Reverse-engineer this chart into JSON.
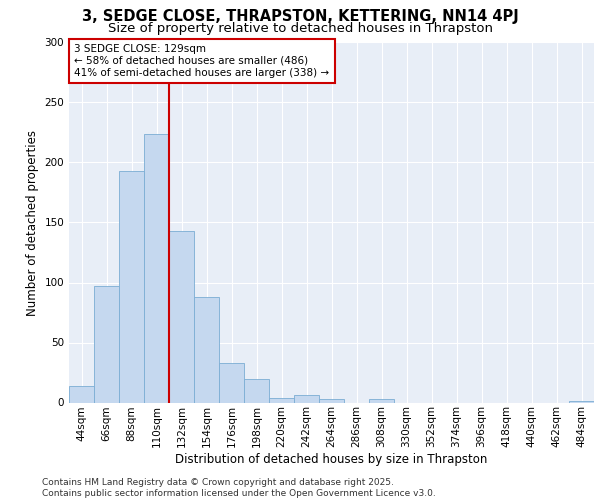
{
  "title1": "3, SEDGE CLOSE, THRAPSTON, KETTERING, NN14 4PJ",
  "title2": "Size of property relative to detached houses in Thrapston",
  "xlabel": "Distribution of detached houses by size in Thrapston",
  "ylabel": "Number of detached properties",
  "categories": [
    "44sqm",
    "66sqm",
    "88sqm",
    "110sqm",
    "132sqm",
    "154sqm",
    "176sqm",
    "198sqm",
    "220sqm",
    "242sqm",
    "264sqm",
    "286sqm",
    "308sqm",
    "330sqm",
    "352sqm",
    "374sqm",
    "396sqm",
    "418sqm",
    "440sqm",
    "462sqm",
    "484sqm"
  ],
  "values": [
    14,
    97,
    193,
    224,
    143,
    88,
    33,
    20,
    4,
    6,
    3,
    0,
    3,
    0,
    0,
    0,
    0,
    0,
    0,
    0,
    1
  ],
  "bar_color": "#c5d8ef",
  "bar_edge_color": "#7badd4",
  "background_color": "#e8eef7",
  "grid_color": "#ffffff",
  "annotation_text": "3 SEDGE CLOSE: 129sqm\n← 58% of detached houses are smaller (486)\n41% of semi-detached houses are larger (338) →",
  "annotation_box_color": "#ffffff",
  "annotation_box_edge": "#cc0000",
  "vline_color": "#cc0000",
  "ylim": [
    0,
    300
  ],
  "yticks": [
    0,
    50,
    100,
    150,
    200,
    250,
    300
  ],
  "footnote": "Contains HM Land Registry data © Crown copyright and database right 2025.\nContains public sector information licensed under the Open Government Licence v3.0.",
  "title1_fontsize": 10.5,
  "title2_fontsize": 9.5,
  "xlabel_fontsize": 8.5,
  "ylabel_fontsize": 8.5,
  "tick_fontsize": 7.5,
  "annot_fontsize": 7.5,
  "footnote_fontsize": 6.5
}
